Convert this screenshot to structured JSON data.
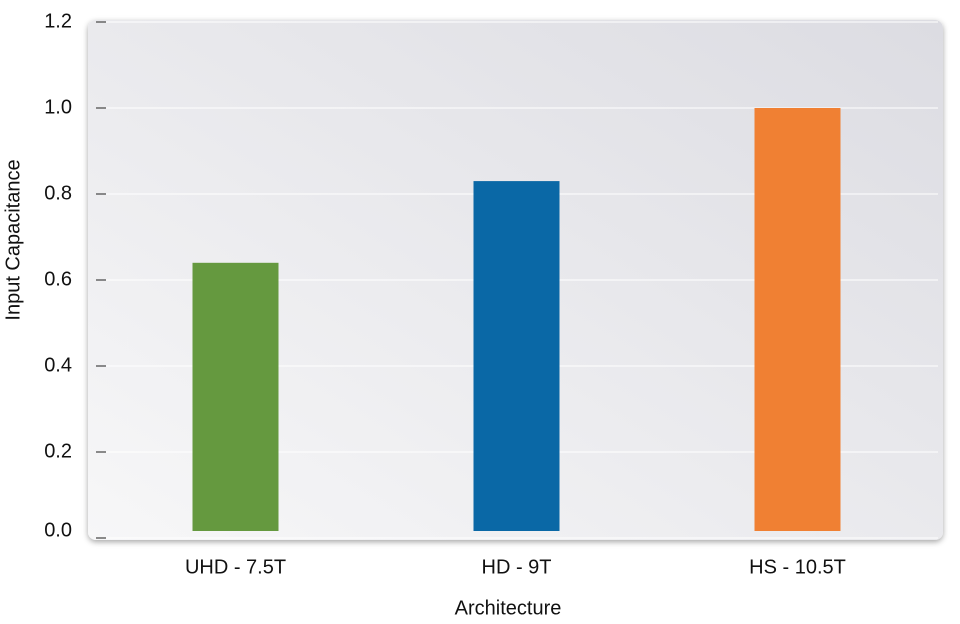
{
  "chart_data": {
    "type": "bar",
    "x_label": "Architecture",
    "y_label": "Input Capacitance",
    "categories": [
      "UHD - 7.5T",
      "HD - 9T",
      "HS - 10.5T"
    ],
    "values": [
      0.64,
      0.83,
      1.0
    ],
    "colors": [
      "#65993f",
      "#0a68a6",
      "#f08033"
    ],
    "ylim": [
      0,
      1.2
    ],
    "yticks": [
      {
        "value": 0,
        "label": "0.0"
      },
      {
        "value": 0.2,
        "label": "0.2"
      },
      {
        "value": 0.4,
        "label": "0.4"
      },
      {
        "value": 0.6,
        "label": "0.6"
      },
      {
        "value": 0.8,
        "label": "0.8"
      },
      {
        "value": 1.0,
        "label": "1.0"
      },
      {
        "value": 1.2,
        "label": "1.2"
      }
    ],
    "grid": true
  }
}
